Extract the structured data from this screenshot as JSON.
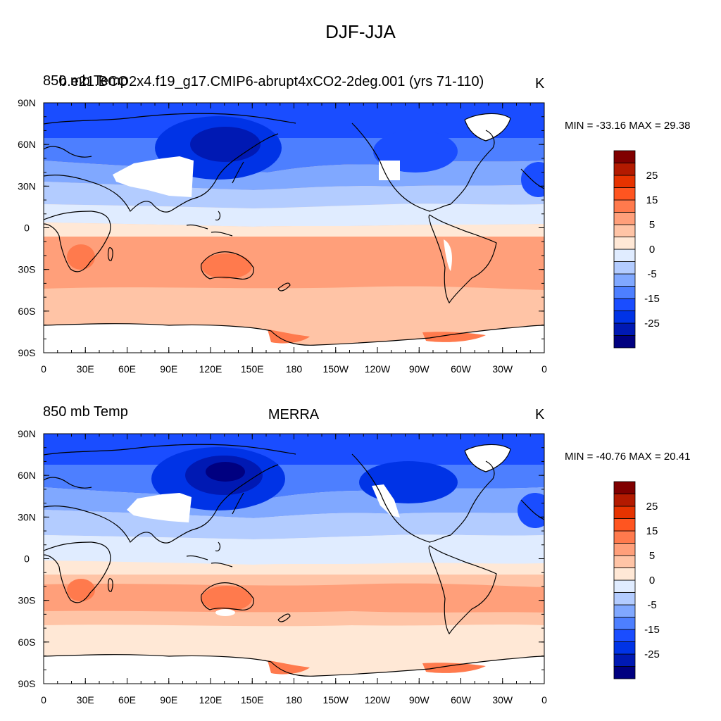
{
  "figure_title": "DJF-JJA",
  "colorbar": {
    "colors": [
      "#000080",
      "#0019B3",
      "#0033E6",
      "#1A4DFF",
      "#4D7FFF",
      "#80A8FF",
      "#B3CCFF",
      "#E0ECFF",
      "#FFE8D6",
      "#FFC4A6",
      "#FF9F7A",
      "#FF7A4D",
      "#FF5520",
      "#E63300",
      "#B31A00",
      "#800000"
    ],
    "labels": [
      "25",
      "15",
      "5",
      "0",
      "-5",
      "-15",
      "-25"
    ]
  },
  "x_ticks": [
    "0",
    "30E",
    "60E",
    "90E",
    "120E",
    "150E",
    "180",
    "150W",
    "120W",
    "90W",
    "60W",
    "30W",
    "0"
  ],
  "y_ticks": [
    "90N",
    "60N",
    "30N",
    "0",
    "30S",
    "60S",
    "90S"
  ],
  "panels": [
    {
      "left_title_a": "850 mb Temp",
      "left_title_b": "b.e21.BCO2x4.f19_g17.CMIP6-abrupt4xCO2-2deg.001 (yrs 71-110)",
      "center_title": "",
      "units": "K",
      "stats": "MIN = -33.16 MAX =  29.38"
    },
    {
      "left_title_a": "850 mb Temp",
      "left_title_b": "",
      "center_title": "MERRA",
      "units": "K",
      "stats": "MIN = -40.76 MAX =  20.41"
    }
  ]
}
